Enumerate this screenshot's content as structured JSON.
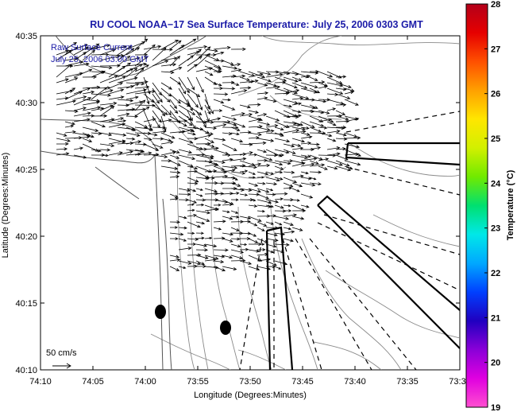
{
  "title": "RU COOL  NOAA−17  Sea Surface Temperature:  July 25, 2006 0303 GMT",
  "inset": {
    "line1": "Raw Surface Current",
    "line2": "July 25, 2006 03:00 GMT"
  },
  "scale": {
    "label": "50 cm/s"
  },
  "chart_data": {
    "type": "map",
    "xlabel": "Longitude (Degrees:Minutes)",
    "ylabel": "Latitude (Degrees:Minutes)",
    "x_ticks": [
      "74:10",
      "74:05",
      "74:00",
      "73:55",
      "73:50",
      "73:45",
      "73:40",
      "73:35",
      "73:3"
    ],
    "y_ticks": [
      "40:35",
      "40:30",
      "40:25",
      "40:20",
      "40:15",
      "40:10"
    ],
    "colorbar": {
      "label": "Temperature (°C)",
      "ticks": [
        "28",
        "27",
        "26",
        "25",
        "24",
        "23",
        "22",
        "21",
        "20",
        "19"
      ],
      "colors": [
        "#b3001a",
        "#e60000",
        "#ff5000",
        "#ffa000",
        "#ffe600",
        "#d2f000",
        "#70ea00",
        "#00e070",
        "#00e8e8",
        "#00a8ff",
        "#0040ff",
        "#2000c0",
        "#8a00d8",
        "#e000e0",
        "#ff4fd0"
      ]
    }
  }
}
